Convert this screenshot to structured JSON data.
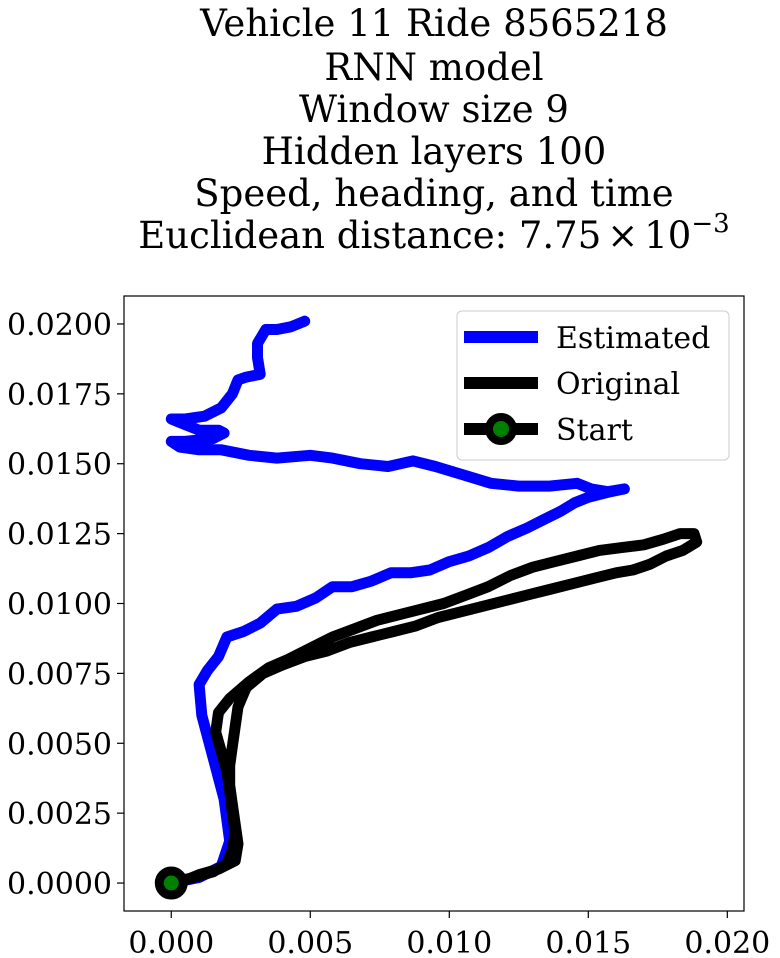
{
  "chart_data": {
    "type": "line",
    "title_lines": [
      "Vehicle 11 Ride 8565218",
      "RNN model",
      "Window size 9",
      "Hidden layers 100",
      "Speed, heading, and time"
    ],
    "title_distance_prefix": "Euclidean distance: 7.75",
    "title_distance_times": "×",
    "title_distance_base": "10",
    "title_distance_exp": "−3",
    "xlabel": "",
    "ylabel": "",
    "xlim": [
      -0.0017,
      0.0206
    ],
    "ylim": [
      -0.001,
      0.021
    ],
    "xticks": [
      0.0,
      0.005,
      0.01,
      0.015,
      0.02
    ],
    "xtick_labels": [
      "0.000",
      "0.005",
      "0.010",
      "0.015",
      "0.020"
    ],
    "yticks": [
      0.0,
      0.0025,
      0.005,
      0.0075,
      0.01,
      0.0125,
      0.015,
      0.0175,
      0.02
    ],
    "ytick_labels": [
      "0.0000",
      "0.0025",
      "0.0050",
      "0.0075",
      "0.0100",
      "0.0125",
      "0.0150",
      "0.0175",
      "0.0200"
    ],
    "grid": false,
    "legend": "top-right",
    "series": [
      {
        "name": "Estimated",
        "color": "#0000ff",
        "points": [
          [
            0.0,
            0.0
          ],
          [
            0.001,
            0.0002
          ],
          [
            0.0018,
            0.0006
          ],
          [
            0.0021,
            0.0015
          ],
          [
            0.0019,
            0.003
          ],
          [
            0.0015,
            0.0045
          ],
          [
            0.0011,
            0.006
          ],
          [
            0.001,
            0.0071
          ],
          [
            0.0013,
            0.0076
          ],
          [
            0.0017,
            0.0081
          ],
          [
            0.002,
            0.0088
          ],
          [
            0.0026,
            0.009
          ],
          [
            0.0032,
            0.0093
          ],
          [
            0.0038,
            0.0098
          ],
          [
            0.0045,
            0.0099
          ],
          [
            0.0052,
            0.0102
          ],
          [
            0.0058,
            0.0106
          ],
          [
            0.0065,
            0.0106
          ],
          [
            0.0072,
            0.0108
          ],
          [
            0.0079,
            0.0111
          ],
          [
            0.0086,
            0.0111
          ],
          [
            0.0093,
            0.0112
          ],
          [
            0.01,
            0.0115
          ],
          [
            0.0107,
            0.0117
          ],
          [
            0.0114,
            0.012
          ],
          [
            0.0121,
            0.0124
          ],
          [
            0.0128,
            0.0127
          ],
          [
            0.0134,
            0.013
          ],
          [
            0.014,
            0.0133
          ],
          [
            0.0145,
            0.0136
          ],
          [
            0.015,
            0.0138
          ],
          [
            0.0158,
            0.014
          ],
          [
            0.0163,
            0.0141
          ],
          [
            0.0157,
            0.014
          ],
          [
            0.0151,
            0.0141
          ],
          [
            0.0146,
            0.0143
          ],
          [
            0.0136,
            0.0142
          ],
          [
            0.0125,
            0.0142
          ],
          [
            0.0115,
            0.0143
          ],
          [
            0.0105,
            0.0146
          ],
          [
            0.0095,
            0.0149
          ],
          [
            0.0087,
            0.0151
          ],
          [
            0.0078,
            0.0149
          ],
          [
            0.0068,
            0.015
          ],
          [
            0.0058,
            0.0152
          ],
          [
            0.005,
            0.0153
          ],
          [
            0.0038,
            0.0152
          ],
          [
            0.0028,
            0.0153
          ],
          [
            0.0018,
            0.0155
          ],
          [
            0.001,
            0.0155
          ],
          [
            0.0003,
            0.0156
          ],
          [
            0.0,
            0.0158
          ],
          [
            0.0005,
            0.0158
          ],
          [
            0.0015,
            0.0159
          ],
          [
            0.0019,
            0.0161
          ],
          [
            0.0017,
            0.0162
          ],
          [
            0.001,
            0.0162
          ],
          [
            0.0005,
            0.0164
          ],
          [
            0.0,
            0.0166
          ],
          [
            0.0005,
            0.0166
          ],
          [
            0.0012,
            0.0167
          ],
          [
            0.0018,
            0.017
          ],
          [
            0.0022,
            0.0175
          ],
          [
            0.0024,
            0.018
          ],
          [
            0.0027,
            0.0181
          ],
          [
            0.0032,
            0.0182
          ],
          [
            0.0031,
            0.0188
          ],
          [
            0.0031,
            0.0193
          ],
          [
            0.0034,
            0.0198
          ],
          [
            0.0038,
            0.0198
          ],
          [
            0.0043,
            0.0199
          ],
          [
            0.0048,
            0.0201
          ]
        ]
      },
      {
        "name": "Original",
        "color": "#000000",
        "points": [
          [
            0.0,
            0.0
          ],
          [
            0.0008,
            0.0002
          ],
          [
            0.0015,
            0.0004
          ],
          [
            0.002,
            0.0007
          ],
          [
            0.0022,
            0.0012
          ],
          [
            0.0023,
            0.0018
          ],
          [
            0.0022,
            0.0025
          ],
          [
            0.0021,
            0.0033
          ],
          [
            0.002,
            0.004
          ],
          [
            0.0018,
            0.0047
          ],
          [
            0.0016,
            0.0054
          ],
          [
            0.0017,
            0.0061
          ],
          [
            0.0021,
            0.0066
          ],
          [
            0.0028,
            0.0072
          ],
          [
            0.0035,
            0.0077
          ],
          [
            0.0042,
            0.008
          ],
          [
            0.005,
            0.0084
          ],
          [
            0.0058,
            0.0088
          ],
          [
            0.0066,
            0.0091
          ],
          [
            0.0074,
            0.0094
          ],
          [
            0.0082,
            0.0096
          ],
          [
            0.009,
            0.0098
          ],
          [
            0.0098,
            0.01
          ],
          [
            0.0106,
            0.0103
          ],
          [
            0.0114,
            0.0106
          ],
          [
            0.0122,
            0.011
          ],
          [
            0.013,
            0.0113
          ],
          [
            0.0138,
            0.0115
          ],
          [
            0.0146,
            0.0117
          ],
          [
            0.0154,
            0.0119
          ],
          [
            0.0162,
            0.012
          ],
          [
            0.017,
            0.0121
          ],
          [
            0.0177,
            0.0123
          ],
          [
            0.0183,
            0.0125
          ],
          [
            0.0188,
            0.0125
          ],
          [
            0.0189,
            0.0122
          ],
          [
            0.0184,
            0.0119
          ],
          [
            0.0178,
            0.0117
          ],
          [
            0.0172,
            0.0114
          ],
          [
            0.0166,
            0.0112
          ],
          [
            0.016,
            0.0111
          ],
          [
            0.0152,
            0.0109
          ],
          [
            0.0144,
            0.0107
          ],
          [
            0.0136,
            0.0105
          ],
          [
            0.0128,
            0.0103
          ],
          [
            0.012,
            0.0101
          ],
          [
            0.0112,
            0.0099
          ],
          [
            0.0104,
            0.0097
          ],
          [
            0.0096,
            0.0095
          ],
          [
            0.0088,
            0.0092
          ],
          [
            0.008,
            0.009
          ],
          [
            0.0072,
            0.0088
          ],
          [
            0.0064,
            0.0086
          ],
          [
            0.0056,
            0.0083
          ],
          [
            0.0048,
            0.0081
          ],
          [
            0.004,
            0.0078
          ],
          [
            0.0033,
            0.0075
          ],
          [
            0.0027,
            0.007
          ],
          [
            0.0024,
            0.0063
          ],
          [
            0.0023,
            0.0056
          ],
          [
            0.0022,
            0.0049
          ],
          [
            0.0021,
            0.0042
          ],
          [
            0.0021,
            0.0035
          ],
          [
            0.0022,
            0.0028
          ],
          [
            0.0023,
            0.0021
          ],
          [
            0.0024,
            0.0014
          ],
          [
            0.0023,
            0.0008
          ],
          [
            0.0017,
            0.0005
          ],
          [
            0.001,
            0.0003
          ],
          [
            0.0005,
            0.0001
          ],
          [
            0.0,
            0.0
          ]
        ]
      }
    ],
    "start_marker": {
      "name": "Start",
      "point": [
        0.0,
        0.0
      ],
      "edge_color": "#000000",
      "face_color": "#008000"
    }
  }
}
